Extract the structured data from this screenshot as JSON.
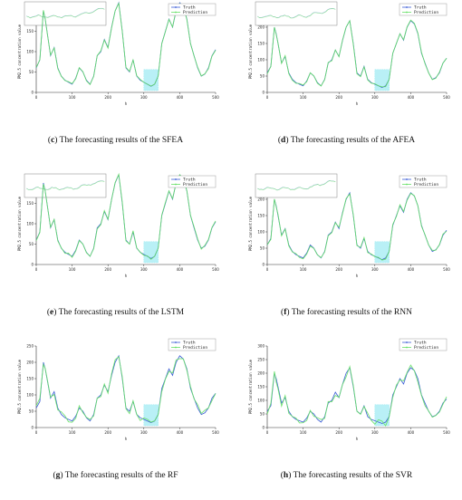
{
  "colors": {
    "truth": "#3a5bd6",
    "prediction": "#66e066",
    "highlight": "#7fe3ee"
  },
  "common": {
    "ylabel": "PM2.5 concentration value",
    "xlabel": "h",
    "legend_truth": "Truth",
    "legend_prediction": "Prediction"
  },
  "panels": [
    {
      "id": "c",
      "letter": "c",
      "text": " The forecasting results of the SFEA",
      "ylim": [
        0,
        200
      ],
      "yticks": [
        "0",
        "50",
        "100",
        "150",
        "200"
      ],
      "noise": 2,
      "inset": true
    },
    {
      "id": "d",
      "letter": "d",
      "text": " The forecasting results of the AFEA",
      "ylim": [
        0,
        250
      ],
      "yticks": [
        "0",
        "50",
        "100",
        "150",
        "200",
        "250"
      ],
      "noise": 3,
      "inset": true
    },
    {
      "id": "e",
      "letter": "e",
      "text": " The forecasting results of the LSTM",
      "ylim": [
        0,
        200
      ],
      "yticks": [
        "0",
        "50",
        "100",
        "150",
        "200"
      ],
      "noise": 3,
      "inset": true
    },
    {
      "id": "f",
      "letter": "f",
      "text": " The forecasting results of the RNN",
      "ylim": [
        0,
        250
      ],
      "yticks": [
        "0",
        "50",
        "100",
        "150",
        "200",
        "250"
      ],
      "noise": 4,
      "inset": true
    },
    {
      "id": "g",
      "letter": "g",
      "text": " The forecasting results of the RF",
      "ylim": [
        0,
        250
      ],
      "yticks": [
        "0",
        "50",
        "100",
        "150",
        "200",
        "250"
      ],
      "noise": 10,
      "inset": false
    },
    {
      "id": "h",
      "letter": "h",
      "text": " The forecasting results of the SVR",
      "ylim": [
        0,
        300
      ],
      "yticks": [
        "0",
        "50",
        "100",
        "150",
        "200",
        "250",
        "300"
      ],
      "noise": 14,
      "inset": false
    }
  ],
  "chart_data": {
    "type": "line",
    "x": [
      0,
      10,
      20,
      25,
      30,
      40,
      50,
      60,
      70,
      80,
      90,
      100,
      110,
      120,
      130,
      140,
      150,
      160,
      170,
      180,
      190,
      200,
      210,
      220,
      230,
      240,
      250,
      260,
      270,
      280,
      290,
      300,
      310,
      320,
      330,
      340,
      350,
      360,
      370,
      380,
      390,
      400,
      410,
      420,
      430,
      440,
      450,
      460,
      470,
      480,
      490,
      500
    ],
    "xticks": [
      0,
      100,
      200,
      300,
      400,
      500
    ],
    "xlim": [
      0,
      500
    ],
    "series": [
      {
        "name": "Truth",
        "values": [
          60,
          80,
          200,
          180,
          150,
          90,
          110,
          60,
          40,
          30,
          25,
          20,
          35,
          60,
          50,
          30,
          20,
          40,
          90,
          100,
          130,
          110,
          160,
          200,
          220,
          150,
          60,
          50,
          80,
          40,
          30,
          25,
          20,
          15,
          20,
          40,
          120,
          150,
          180,
          160,
          200,
          220,
          210,
          180,
          120,
          90,
          60,
          40,
          45,
          60,
          90,
          105
        ]
      },
      {
        "name": "Prediction",
        "values": [
          58,
          82,
          195,
          182,
          148,
          92,
          108,
          62,
          41,
          31,
          26,
          21,
          34,
          58,
          51,
          31,
          21,
          39,
          88,
          101,
          128,
          112,
          158,
          198,
          218,
          152,
          62,
          49,
          79,
          41,
          31,
          24,
          21,
          16,
          21,
          39,
          118,
          152,
          178,
          162,
          198,
          218,
          208,
          182,
          122,
          92,
          62,
          41,
          44,
          61,
          88,
          103
        ]
      }
    ],
    "highlight_x_range": [
      300,
      340
    ]
  }
}
